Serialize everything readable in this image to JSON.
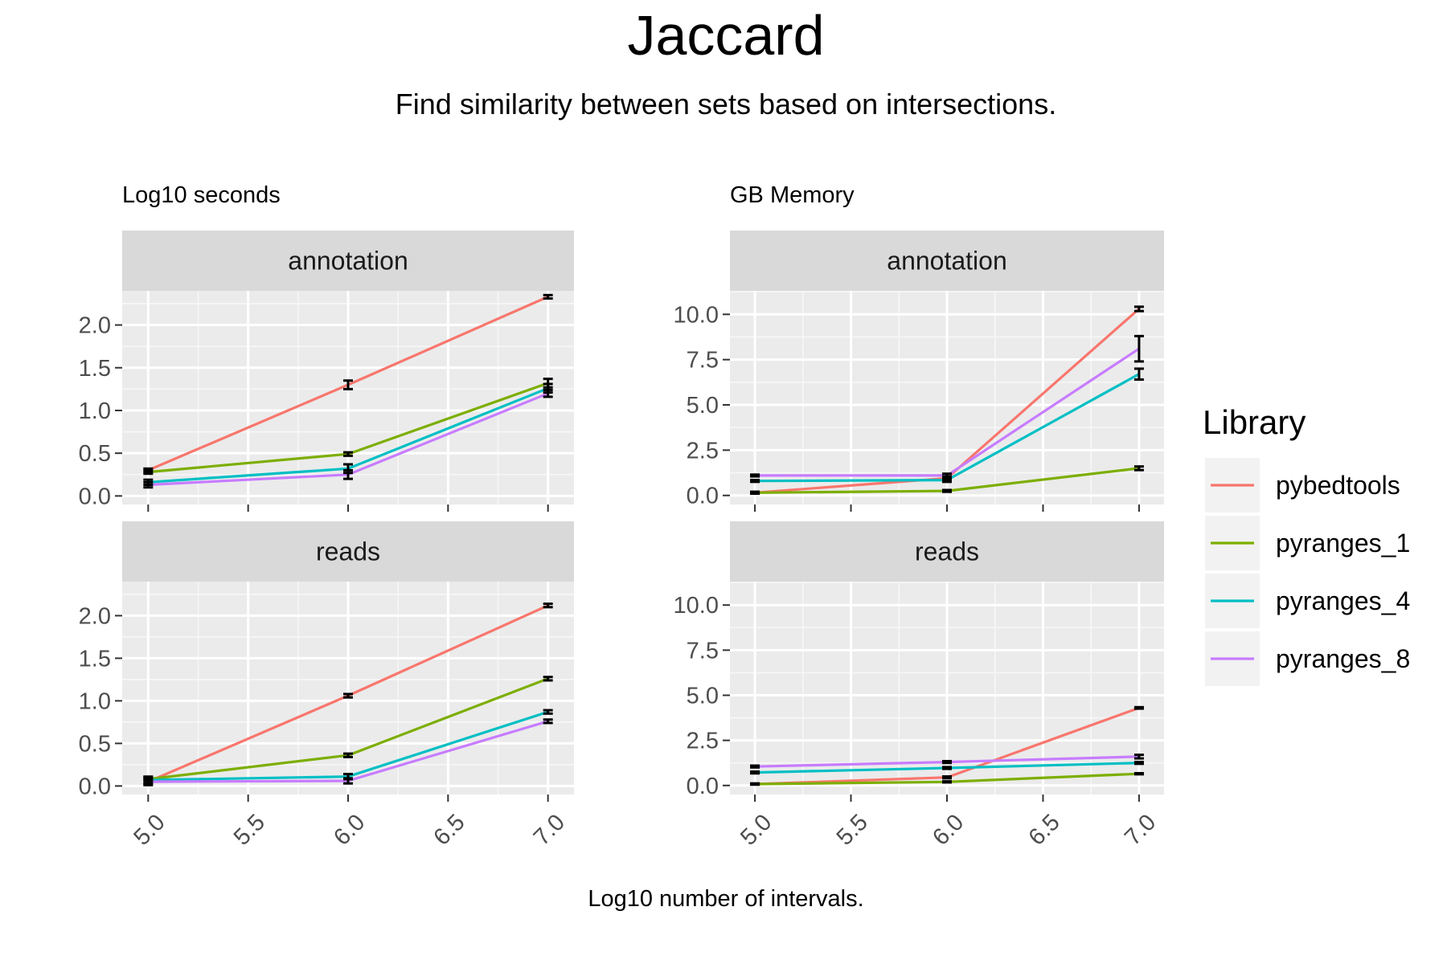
{
  "title": "Jaccard",
  "subtitle": "Find similarity between sets based on intersections.",
  "xlabel": "Log10 number of intervals.",
  "legend": {
    "title": "Library",
    "placement": "right",
    "items": [
      {
        "label": "pybedtools",
        "color": "#F8766D"
      },
      {
        "label": "pyranges_1",
        "color": "#7CAE00"
      },
      {
        "label": "pyranges_4",
        "color": "#00BFC4"
      },
      {
        "label": "pyranges_8",
        "color": "#C77CFF"
      }
    ]
  },
  "chart_data": [
    {
      "type": "line",
      "column_title": "Log10 seconds",
      "facet": "annotation",
      "x": [
        5.0,
        6.0,
        7.0
      ],
      "xticks": [
        "5.0",
        "5.5",
        "6.0",
        "6.5",
        "7.0"
      ],
      "xlim": [
        4.87,
        7.13
      ],
      "ylim": [
        -0.1,
        2.4
      ],
      "yticks": [
        "0.0",
        "0.5",
        "1.0",
        "1.5",
        "2.0"
      ],
      "series": [
        {
          "name": "pybedtools",
          "values": [
            0.3,
            1.3,
            2.33
          ],
          "err": [
            0.02,
            0.05,
            0.02
          ]
        },
        {
          "name": "pyranges_1",
          "values": [
            0.28,
            0.49,
            1.32
          ],
          "err": [
            0.02,
            0.02,
            0.05
          ]
        },
        {
          "name": "pyranges_4",
          "values": [
            0.16,
            0.32,
            1.26
          ],
          "err": [
            0.03,
            0.05,
            0.05
          ]
        },
        {
          "name": "pyranges_8",
          "values": [
            0.13,
            0.25,
            1.2
          ],
          "err": [
            0.03,
            0.05,
            0.04
          ]
        }
      ]
    },
    {
      "type": "line",
      "column_title": "Log10 seconds",
      "facet": "reads",
      "x": [
        5.0,
        6.0,
        7.0
      ],
      "xticks": [
        "5.0",
        "5.5",
        "6.0",
        "6.5",
        "7.0"
      ],
      "xlim": [
        4.87,
        7.13
      ],
      "ylim": [
        -0.1,
        2.4
      ],
      "yticks": [
        "0.0",
        "0.5",
        "1.0",
        "1.5",
        "2.0"
      ],
      "series": [
        {
          "name": "pybedtools",
          "values": [
            0.05,
            1.06,
            2.12
          ],
          "err": [
            0.02,
            0.02,
            0.02
          ]
        },
        {
          "name": "pyranges_1",
          "values": [
            0.08,
            0.36,
            1.26
          ],
          "err": [
            0.02,
            0.02,
            0.02
          ]
        },
        {
          "name": "pyranges_4",
          "values": [
            0.07,
            0.11,
            0.87
          ],
          "err": [
            0.04,
            0.03,
            0.02
          ]
        },
        {
          "name": "pyranges_8",
          "values": [
            0.05,
            0.06,
            0.76
          ],
          "err": [
            0.04,
            0.03,
            0.02
          ]
        }
      ]
    },
    {
      "type": "line",
      "column_title": "GB Memory",
      "facet": "annotation",
      "x": [
        5.0,
        6.0,
        7.0
      ],
      "xticks": [
        "5.0",
        "5.5",
        "6.0",
        "6.5",
        "7.0"
      ],
      "xlim": [
        4.87,
        7.13
      ],
      "ylim": [
        -0.5,
        11.3
      ],
      "yticks": [
        "0.0",
        "2.5",
        "5.0",
        "7.5",
        "10.0"
      ],
      "series": [
        {
          "name": "pybedtools",
          "values": [
            0.15,
            0.95,
            10.3
          ],
          "err": [
            0.05,
            0.1,
            0.12
          ]
        },
        {
          "name": "pyranges_1",
          "values": [
            0.15,
            0.25,
            1.5
          ],
          "err": [
            0.05,
            0.05,
            0.1
          ]
        },
        {
          "name": "pyranges_4",
          "values": [
            0.8,
            0.85,
            6.7
          ],
          "err": [
            0.05,
            0.1,
            0.3
          ]
        },
        {
          "name": "pyranges_8",
          "values": [
            1.1,
            1.1,
            8.1
          ],
          "err": [
            0.05,
            0.1,
            0.7
          ]
        }
      ]
    },
    {
      "type": "line",
      "column_title": "GB Memory",
      "facet": "reads",
      "x": [
        5.0,
        6.0,
        7.0
      ],
      "xticks": [
        "5.0",
        "5.5",
        "6.0",
        "6.5",
        "7.0"
      ],
      "xlim": [
        4.87,
        7.13
      ],
      "ylim": [
        -0.5,
        11.3
      ],
      "yticks": [
        "0.0",
        "2.5",
        "5.0",
        "7.5",
        "10.0"
      ],
      "series": [
        {
          "name": "pybedtools",
          "values": [
            0.08,
            0.45,
            4.3
          ],
          "err": [
            0.03,
            0.05,
            0.04
          ]
        },
        {
          "name": "pyranges_1",
          "values": [
            0.08,
            0.2,
            0.65
          ],
          "err": [
            0.03,
            0.03,
            0.03
          ]
        },
        {
          "name": "pyranges_4",
          "values": [
            0.72,
            0.97,
            1.25
          ],
          "err": [
            0.05,
            0.05,
            0.05
          ]
        },
        {
          "name": "pyranges_8",
          "values": [
            1.05,
            1.3,
            1.6
          ],
          "err": [
            0.05,
            0.05,
            0.1
          ]
        }
      ]
    }
  ]
}
